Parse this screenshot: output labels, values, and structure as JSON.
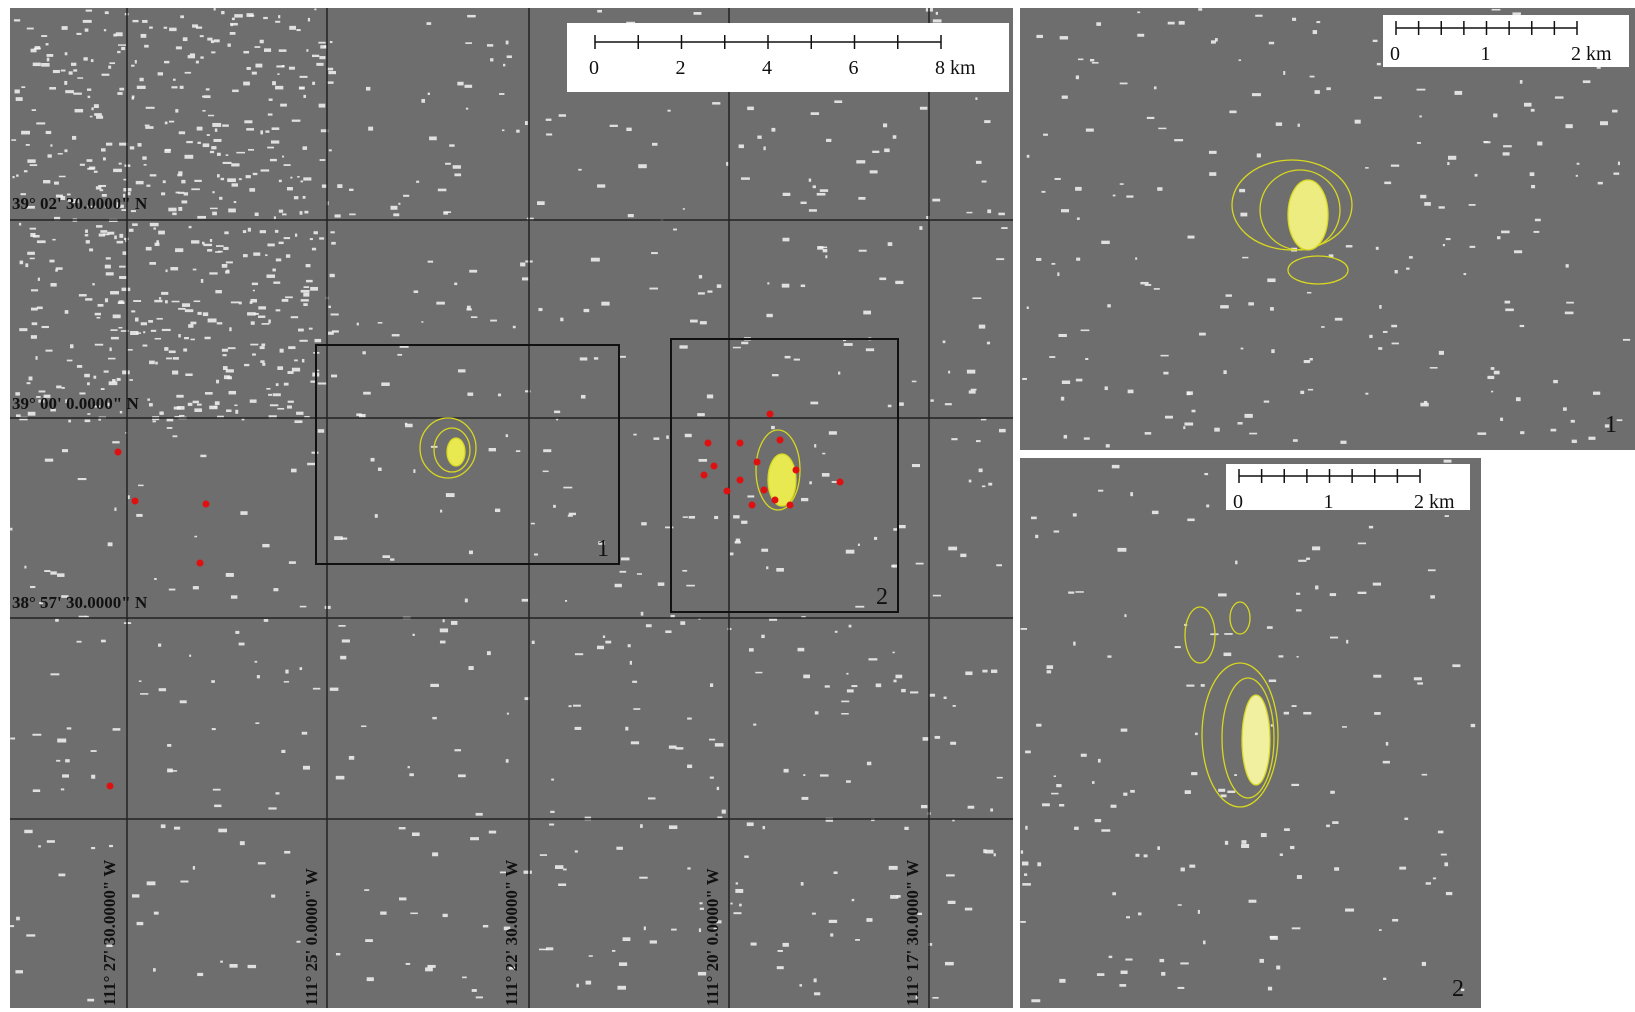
{
  "main_map": {
    "scale_bar": {
      "labels": [
        "0",
        "2",
        "4",
        "6",
        "8 km"
      ]
    },
    "latitudes": [
      "39° 02' 30.0000\" N",
      "39° 00' 0.0000\" N",
      "38° 57' 30.0000\" N"
    ],
    "longitudes": [
      "111° 27' 30.0000\" W",
      "111° 25' 0.0000\" W",
      "111° 22' 30.0000\" W",
      "111° 20' 0.0000\" W",
      "111° 17' 30.0000\" W"
    ],
    "boxes": [
      "1",
      "2"
    ]
  },
  "inset_1": {
    "scale_bar": {
      "labels": [
        "0",
        "1",
        "2 km"
      ]
    },
    "label": "1"
  },
  "inset_2": {
    "scale_bar": {
      "labels": [
        "0",
        "1",
        "2 km"
      ]
    },
    "label": "2"
  }
}
